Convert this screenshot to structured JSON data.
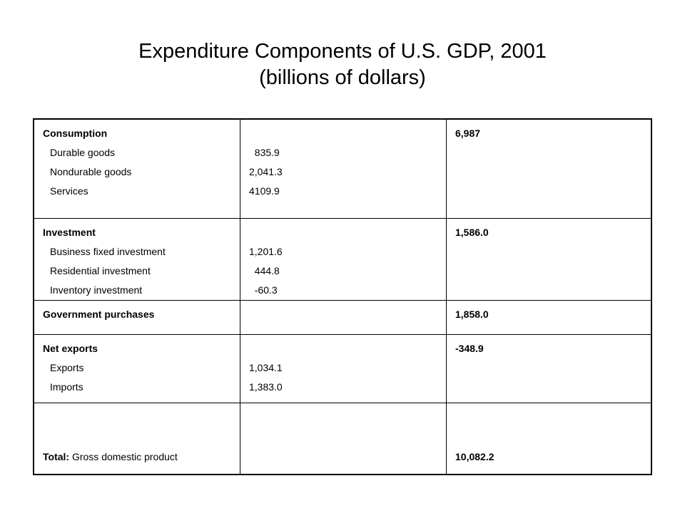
{
  "title_line1": "Expenditure  Components of U.S. GDP, 2001",
  "title_line2": "(billions of dollars)",
  "rows": [
    {
      "heading": "Consumption",
      "items": [
        "Durable goods",
        "Nondurable goods",
        "Services"
      ],
      "values": [
        "835.9",
        "2,041.3",
        "4109.9"
      ],
      "total": "6,987"
    },
    {
      "heading": "Investment",
      "items": [
        "Business fixed investment",
        "Residential investment",
        "Inventory investment"
      ],
      "values": [
        "1,201.6",
        "444.8",
        "-60.3"
      ],
      "total": "1,586.0"
    },
    {
      "heading": "Government purchases",
      "items": [],
      "values": [],
      "total": "1,858.0"
    },
    {
      "heading": "Net exports",
      "items": [
        "Exports",
        "Imports"
      ],
      "values": [
        "1,034.1",
        "1,383.0"
      ],
      "total": "-348.9"
    }
  ],
  "footer": {
    "label_bold": "Total:",
    "label_rest": " Gross domestic product",
    "total": "10,082.2"
  }
}
